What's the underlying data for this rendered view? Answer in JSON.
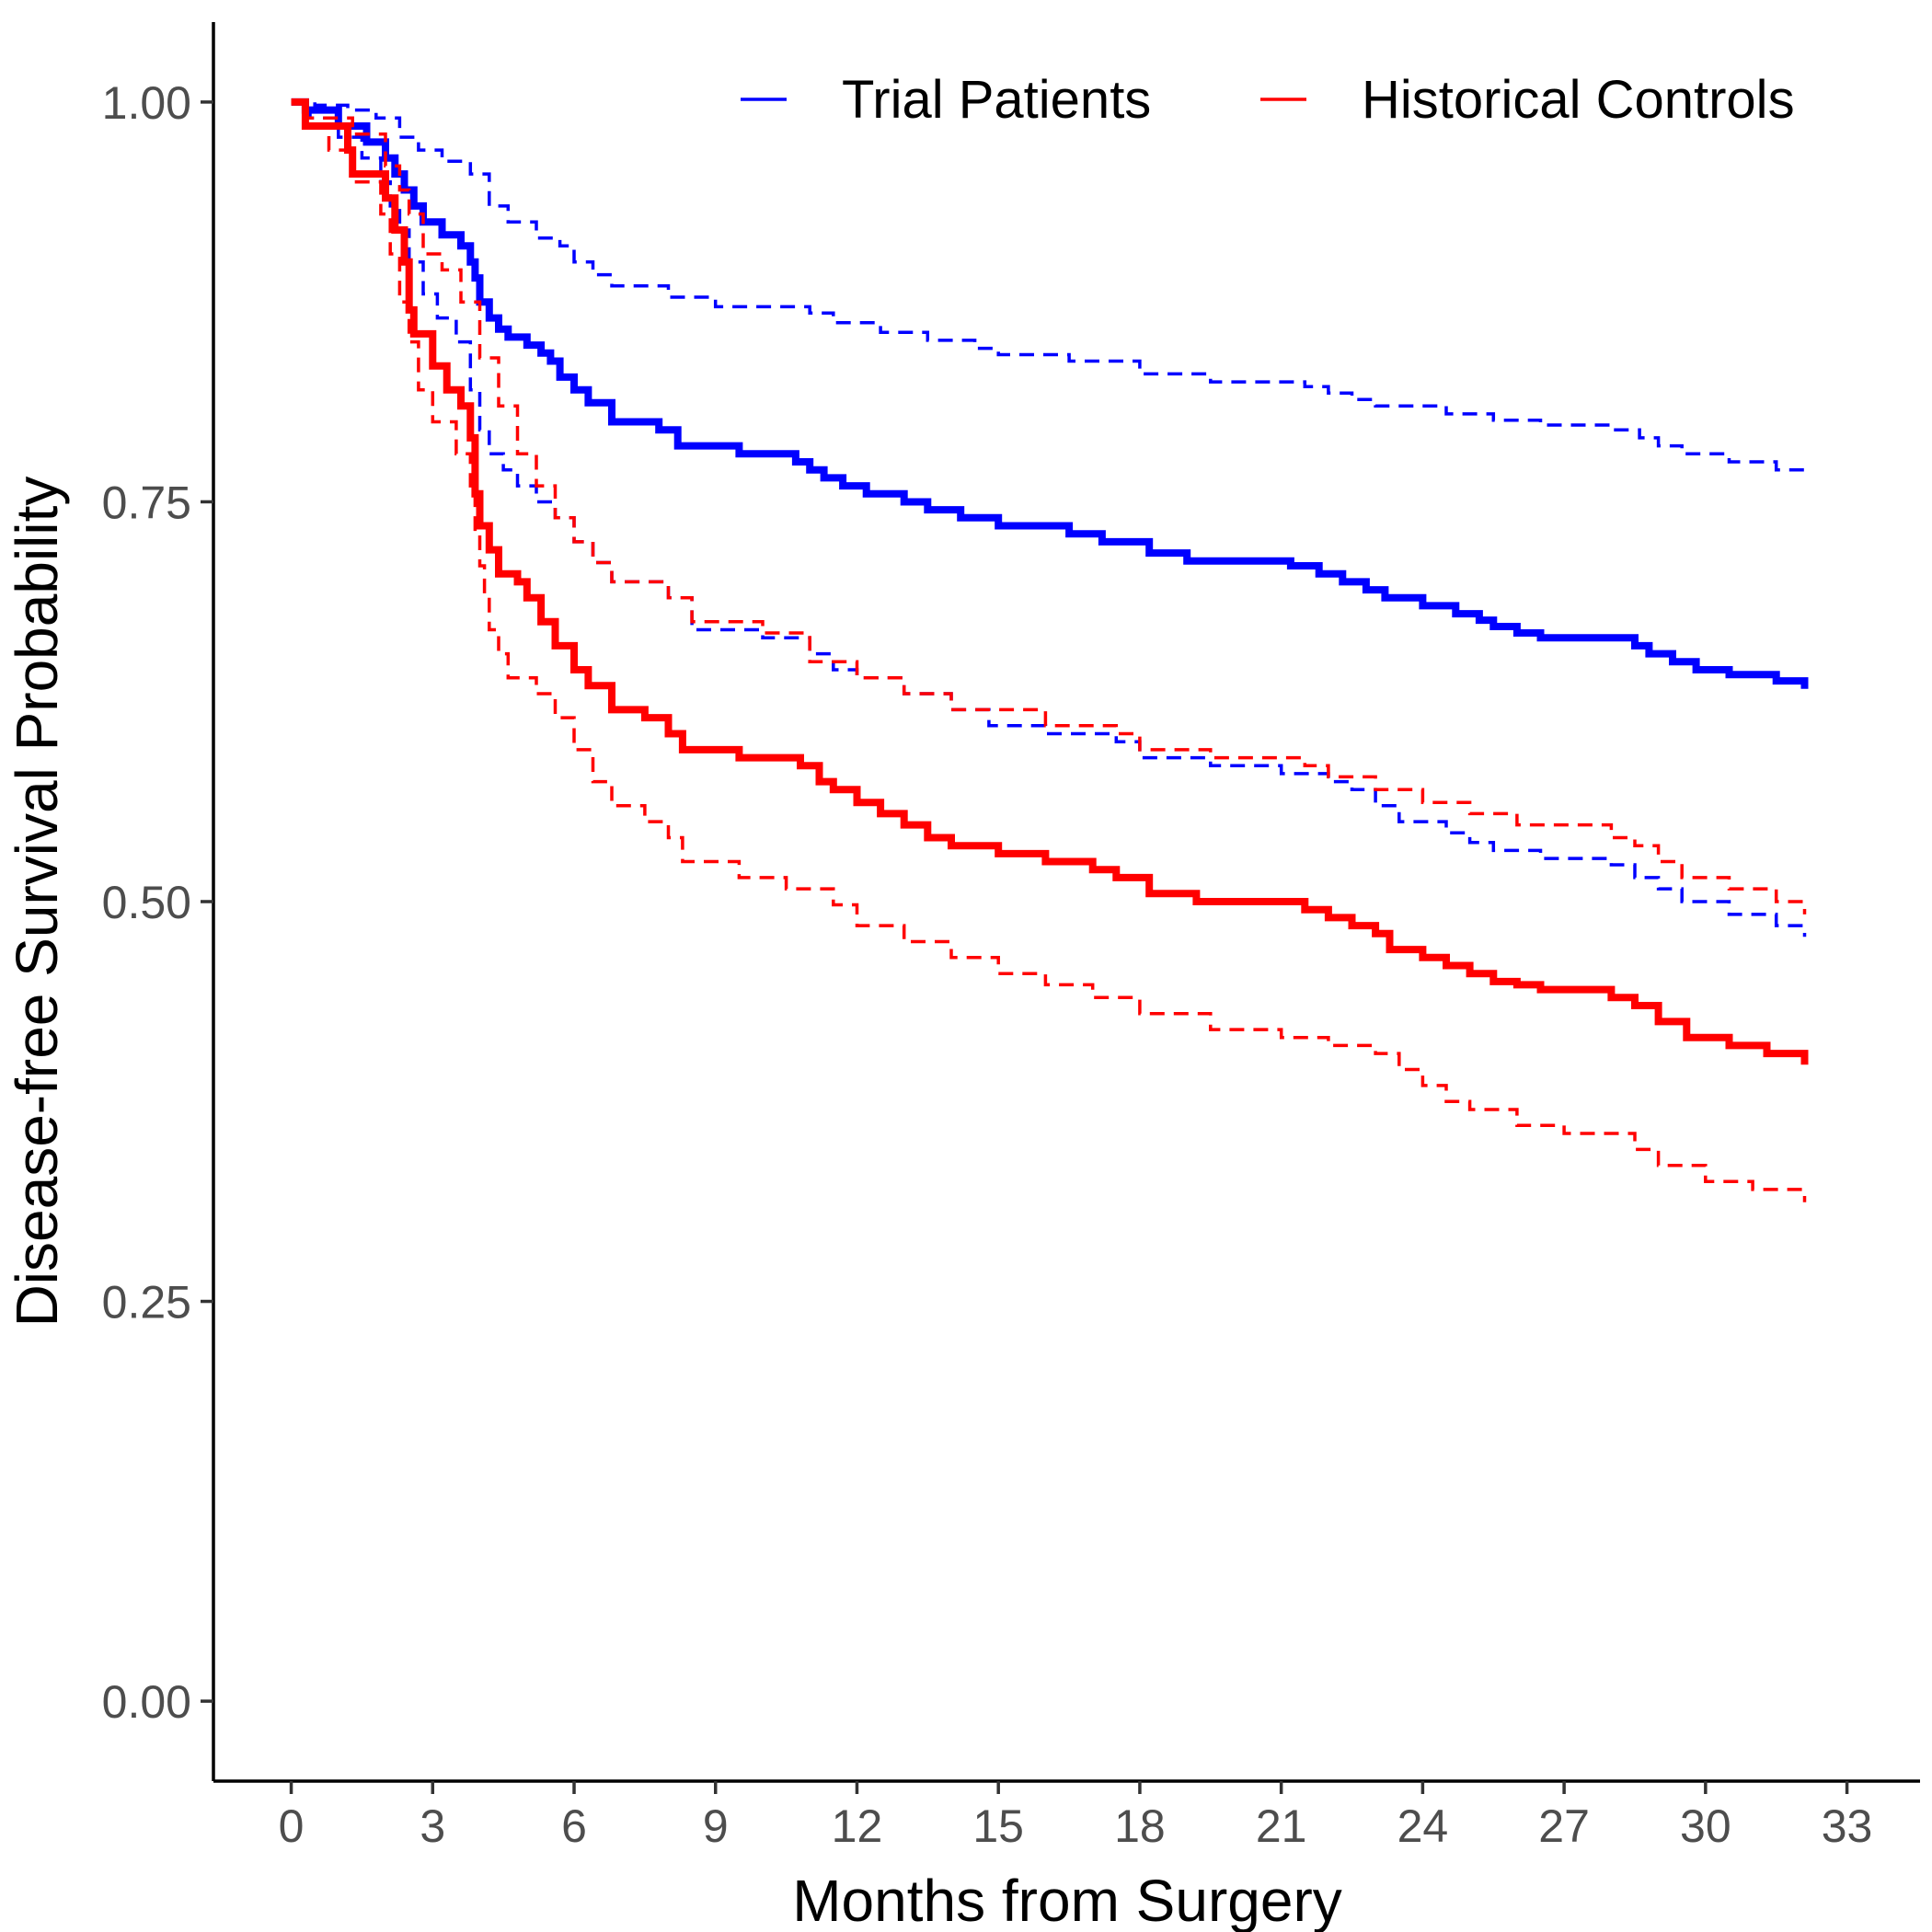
{
  "chart_data": {
    "type": "line",
    "title": "",
    "xlabel": "Months from Surgery",
    "ylabel": "Disease-free Survival Probability",
    "xlim": [
      -1.65,
      34.55
    ],
    "ylim": [
      -0.05,
      1.05
    ],
    "x_ticks": [
      0,
      3,
      6,
      9,
      12,
      15,
      18,
      21,
      24,
      27,
      30,
      33
    ],
    "y_ticks": [
      0,
      0.25,
      0.5,
      0.75,
      1.0
    ],
    "x_tick_labels": [
      "0",
      "3",
      "6",
      "9",
      "12",
      "15",
      "18",
      "21",
      "24",
      "27",
      "30",
      "33"
    ],
    "y_tick_labels": [
      "0.00",
      "0.25",
      "0.50",
      "0.75",
      "1.00"
    ],
    "grid": false,
    "legend_position": "top",
    "step": true,
    "series": [
      {
        "name": "Trial Patients",
        "color": "#0000ff",
        "survival": {
          "x": [
            0,
            0.3,
            1.0,
            1.6,
            2.0,
            2.2,
            2.4,
            2.6,
            2.8,
            3.2,
            3.6,
            3.8,
            3.9,
            4.0,
            4.2,
            4.4,
            4.6,
            5.0,
            5.3,
            5.5,
            5.7,
            6.0,
            6.3,
            6.8,
            7.8,
            8.2,
            9.5,
            10.7,
            11.0,
            11.3,
            11.7,
            12.2,
            13.0,
            13.5,
            14.2,
            15.0,
            15.5,
            16.5,
            17.2,
            18.2,
            19.0,
            21.2,
            21.8,
            22.3,
            22.8,
            23.2,
            24.0,
            24.7,
            25.2,
            25.5,
            26.0,
            26.5,
            27.0,
            28.5,
            28.8,
            29.3,
            29.8,
            30.5,
            31.5,
            32.1
          ],
          "y": [
            1.0,
            0.995,
            0.985,
            0.975,
            0.965,
            0.955,
            0.945,
            0.935,
            0.925,
            0.917,
            0.91,
            0.9,
            0.89,
            0.875,
            0.865,
            0.858,
            0.853,
            0.848,
            0.843,
            0.838,
            0.828,
            0.82,
            0.812,
            0.8,
            0.795,
            0.785,
            0.78,
            0.775,
            0.77,
            0.765,
            0.76,
            0.755,
            0.75,
            0.745,
            0.74,
            0.735,
            0.735,
            0.73,
            0.725,
            0.718,
            0.713,
            0.71,
            0.705,
            0.7,
            0.695,
            0.69,
            0.685,
            0.68,
            0.676,
            0.672,
            0.668,
            0.665,
            0.665,
            0.66,
            0.655,
            0.65,
            0.645,
            0.642,
            0.638,
            0.633
          ]
        },
        "upper_ci": {
          "x": [
            0,
            0.5,
            1.2,
            1.8,
            2.3,
            2.7,
            3.2,
            3.8,
            4.2,
            4.6,
            5.2,
            5.7,
            6.0,
            6.4,
            6.8,
            8.0,
            9.0,
            11.0,
            11.5,
            12.5,
            13.5,
            14.5,
            15.0,
            16.5,
            18.0,
            19.5,
            21.5,
            22.0,
            22.5,
            23.0,
            24.5,
            25.5,
            26.5,
            28.0,
            28.6,
            29.0,
            29.5,
            30.5,
            31.5,
            32.1
          ],
          "y": [
            1.0,
            0.998,
            0.995,
            0.99,
            0.978,
            0.97,
            0.963,
            0.955,
            0.935,
            0.925,
            0.915,
            0.91,
            0.9,
            0.892,
            0.885,
            0.878,
            0.872,
            0.868,
            0.862,
            0.856,
            0.851,
            0.846,
            0.842,
            0.838,
            0.83,
            0.825,
            0.822,
            0.818,
            0.814,
            0.81,
            0.805,
            0.801,
            0.798,
            0.795,
            0.79,
            0.785,
            0.78,
            0.775,
            0.77,
            0.765
          ]
        },
        "lower_ci": {
          "x": [
            0,
            0.4,
            1.0,
            1.5,
            1.9,
            2.1,
            2.3,
            2.5,
            2.8,
            3.1,
            3.5,
            3.8,
            4.0,
            4.2,
            4.5,
            4.8,
            5.2,
            5.6,
            6.0,
            6.4,
            6.8,
            8.0,
            8.5,
            10.0,
            11.0,
            11.5,
            12.0,
            13.0,
            14.0,
            14.8,
            16.0,
            17.5,
            18.0,
            19.5,
            21.0,
            22.0,
            22.5,
            23.0,
            23.5,
            24.5,
            25.0,
            25.5,
            26.5,
            28.0,
            28.5,
            29.0,
            29.5,
            30.5,
            31.5,
            32.1
          ],
          "y": [
            1.0,
            0.99,
            0.978,
            0.965,
            0.95,
            0.935,
            0.92,
            0.9,
            0.88,
            0.865,
            0.85,
            0.82,
            0.795,
            0.78,
            0.77,
            0.76,
            0.75,
            0.74,
            0.725,
            0.712,
            0.7,
            0.69,
            0.67,
            0.665,
            0.655,
            0.645,
            0.64,
            0.63,
            0.62,
            0.61,
            0.605,
            0.6,
            0.59,
            0.585,
            0.58,
            0.575,
            0.57,
            0.56,
            0.55,
            0.543,
            0.537,
            0.532,
            0.527,
            0.523,
            0.515,
            0.508,
            0.5,
            0.492,
            0.485,
            0.478
          ]
        }
      },
      {
        "name": "Historical Controls",
        "color": "#ff0000",
        "survival": {
          "x": [
            0,
            0.3,
            1.2,
            1.3,
            2.0,
            2.2,
            2.4,
            2.5,
            2.6,
            3.0,
            3.3,
            3.6,
            3.8,
            3.9,
            4.0,
            4.2,
            4.4,
            4.8,
            5.0,
            5.3,
            5.6,
            6.0,
            6.3,
            6.8,
            7.5,
            8.0,
            8.3,
            9.5,
            10.8,
            11.2,
            11.5,
            12.0,
            12.5,
            13.0,
            13.5,
            14.0,
            15.0,
            16.0,
            17.0,
            17.5,
            18.2,
            19.2,
            21.5,
            22.0,
            22.5,
            23.0,
            23.3,
            24.0,
            24.5,
            25.0,
            25.5,
            26.0,
            26.5,
            28.0,
            28.5,
            29.0,
            29.6,
            30.5,
            31.3,
            32.1
          ],
          "y": [
            1.0,
            0.985,
            0.97,
            0.955,
            0.94,
            0.92,
            0.9,
            0.87,
            0.855,
            0.835,
            0.82,
            0.81,
            0.79,
            0.755,
            0.735,
            0.72,
            0.705,
            0.7,
            0.69,
            0.675,
            0.66,
            0.645,
            0.635,
            0.62,
            0.615,
            0.605,
            0.595,
            0.59,
            0.585,
            0.575,
            0.57,
            0.562,
            0.555,
            0.548,
            0.54,
            0.535,
            0.53,
            0.525,
            0.52,
            0.515,
            0.505,
            0.5,
            0.495,
            0.49,
            0.485,
            0.48,
            0.47,
            0.465,
            0.46,
            0.455,
            0.45,
            0.448,
            0.445,
            0.44,
            0.435,
            0.425,
            0.415,
            0.41,
            0.405,
            0.398
          ]
        },
        "upper_ci": {
          "x": [
            0,
            0.3,
            1.3,
            2.0,
            2.3,
            2.5,
            2.8,
            3.2,
            3.6,
            4.0,
            4.4,
            4.8,
            5.2,
            5.6,
            6.0,
            6.4,
            6.8,
            8.0,
            8.5,
            10.0,
            11.0,
            12.0,
            13.0,
            14.0,
            16.0,
            17.5,
            18.0,
            19.5,
            21.5,
            22.0,
            23.0,
            24.0,
            25.0,
            26.0,
            28.0,
            28.5,
            29.0,
            29.5,
            30.5,
            31.5,
            32.1
          ],
          "y": [
            1.0,
            0.99,
            0.98,
            0.96,
            0.945,
            0.93,
            0.905,
            0.895,
            0.875,
            0.84,
            0.81,
            0.78,
            0.76,
            0.74,
            0.725,
            0.712,
            0.7,
            0.69,
            0.675,
            0.668,
            0.65,
            0.64,
            0.63,
            0.62,
            0.61,
            0.605,
            0.595,
            0.59,
            0.585,
            0.578,
            0.57,
            0.562,
            0.555,
            0.548,
            0.54,
            0.535,
            0.525,
            0.515,
            0.508,
            0.5,
            0.492
          ]
        },
        "lower_ci": {
          "x": [
            0,
            0.3,
            0.8,
            1.3,
            1.9,
            2.1,
            2.3,
            2.5,
            2.7,
            3.0,
            3.5,
            3.8,
            3.9,
            4.0,
            4.1,
            4.2,
            4.4,
            4.6,
            5.2,
            5.6,
            6.0,
            6.4,
            6.8,
            7.5,
            8.0,
            8.3,
            9.5,
            10.5,
            11.5,
            12.0,
            13.0,
            14.0,
            15.0,
            16.0,
            17.0,
            18.0,
            19.5,
            21.0,
            22.0,
            23.0,
            23.5,
            24.0,
            24.5,
            25.0,
            26.0,
            27.0,
            28.5,
            29.0,
            30.0,
            31.0,
            32.1
          ],
          "y": [
            1.0,
            0.985,
            0.97,
            0.95,
            0.93,
            0.905,
            0.875,
            0.85,
            0.82,
            0.8,
            0.78,
            0.76,
            0.73,
            0.71,
            0.69,
            0.67,
            0.655,
            0.64,
            0.63,
            0.615,
            0.595,
            0.575,
            0.56,
            0.55,
            0.54,
            0.525,
            0.515,
            0.508,
            0.498,
            0.485,
            0.475,
            0.465,
            0.455,
            0.448,
            0.44,
            0.43,
            0.42,
            0.415,
            0.41,
            0.405,
            0.395,
            0.385,
            0.375,
            0.37,
            0.36,
            0.355,
            0.345,
            0.335,
            0.325,
            0.32,
            0.312
          ]
        }
      }
    ]
  }
}
